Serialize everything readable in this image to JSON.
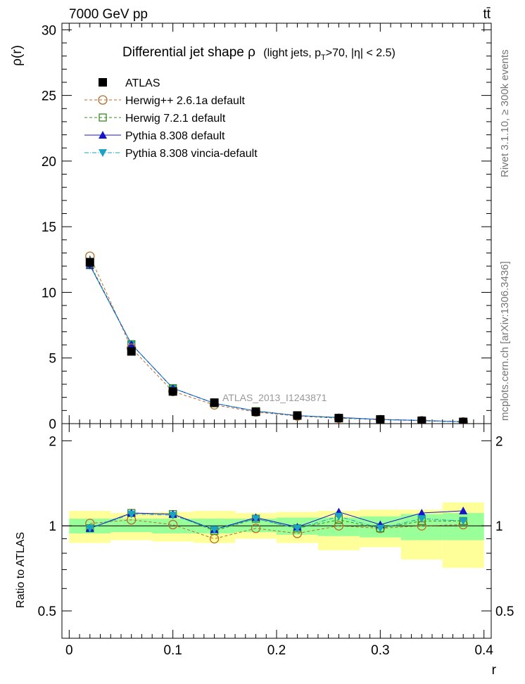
{
  "header": {
    "left": "7000 GeV pp",
    "right": "tt̄"
  },
  "side_labels": {
    "rivet": "Rivet 3.1.10, ≥ 300k events",
    "mcplots": "mcplots.cern.ch [arXiv:1306.3436]"
  },
  "chart_data": [
    {
      "type": "line",
      "title": "Differential jet shape  ρ",
      "subtitle": "(light jets, p_T>70, |η| < 2.5)",
      "subtitle_parts": {
        "a": "(light jets, p",
        "sub": "T",
        "b": ">70, |η| < 2.5)"
      },
      "watermark": "ATLAS_2013_I1243871",
      "xlabel": "r",
      "ylabel": "ρ(r)",
      "xlim": [
        -0.007,
        0.407
      ],
      "ylim": [
        0,
        30.5
      ],
      "xticks": [
        0,
        0.1,
        0.2,
        0.3,
        0.4
      ],
      "xtick_labels": [
        "0",
        "0.1",
        "0.2",
        "0.3",
        "0.4"
      ],
      "yticks": [
        0,
        5,
        10,
        15,
        20,
        25,
        30
      ],
      "ytick_labels": [
        "0",
        "5",
        "10",
        "15",
        "20",
        "25",
        "30"
      ],
      "x": [
        0.02,
        0.06,
        0.1,
        0.14,
        0.18,
        0.22,
        0.26,
        0.3,
        0.34,
        0.38
      ],
      "series": [
        {
          "name": "ATLAS",
          "color": "#000000",
          "marker": "filled-square",
          "values": [
            12.3,
            5.5,
            2.45,
            1.6,
            0.9,
            0.62,
            0.42,
            0.32,
            0.22,
            0.13
          ]
        },
        {
          "name": "Herwig++ 2.6.1a default",
          "color": "#b86a2a",
          "marker": "open-circle",
          "dash": "4,3",
          "values": [
            12.75,
            5.75,
            2.45,
            1.43,
            0.88,
            0.58,
            0.41,
            0.31,
            0.22,
            0.13
          ]
        },
        {
          "name": "Herwig 7.2.1 default",
          "color": "#3a8a1e",
          "marker": "open-square",
          "dash": "4,3",
          "values": [
            12.15,
            6.05,
            2.7,
            1.55,
            0.95,
            0.61,
            0.43,
            0.31,
            0.23,
            0.13
          ]
        },
        {
          "name": "Pythia 8.308 default",
          "color": "#1515cc",
          "marker": "filled-triangle-up",
          "values": [
            12.05,
            6.05,
            2.7,
            1.55,
            0.96,
            0.61,
            0.47,
            0.32,
            0.24,
            0.15
          ]
        },
        {
          "name": "Pythia 8.308 vincia-default",
          "color": "#1aa3c2",
          "marker": "filled-triangle-down",
          "dash": "6,2,1,2",
          "values": [
            12.05,
            6.05,
            2.7,
            1.55,
            0.96,
            0.61,
            0.45,
            0.31,
            0.23,
            0.14
          ]
        }
      ]
    },
    {
      "type": "line",
      "title": "Ratio to ATLAS",
      "ylabel": "Ratio to ATLAS",
      "xlabel": "r",
      "ylim": [
        0.4,
        2.3
      ],
      "yticks": [
        0.5,
        1,
        2
      ],
      "ytick_labels": [
        "0.5",
        "1",
        "2"
      ],
      "x": [
        0.02,
        0.06,
        0.1,
        0.14,
        0.18,
        0.22,
        0.26,
        0.3,
        0.34,
        0.38
      ],
      "bin_edges": [
        0,
        0.04,
        0.08,
        0.12,
        0.16,
        0.2,
        0.24,
        0.28,
        0.32,
        0.36,
        0.4
      ],
      "band_inner": {
        "lo": [
          0.94,
          0.95,
          0.94,
          0.94,
          0.95,
          0.93,
          0.92,
          0.91,
          0.89,
          0.89
        ],
        "hi": [
          1.06,
          1.06,
          1.06,
          1.06,
          1.06,
          1.07,
          1.07,
          1.08,
          1.1,
          1.11
        ]
      },
      "band_outer": {
        "lo": [
          0.87,
          0.89,
          0.88,
          0.87,
          0.9,
          0.87,
          0.82,
          0.84,
          0.76,
          0.71
        ],
        "hi": [
          1.13,
          1.11,
          1.12,
          1.13,
          1.11,
          1.12,
          1.13,
          1.14,
          1.14,
          1.21
        ]
      },
      "series": [
        {
          "name": "Herwig++ 2.6.1a default",
          "values": [
            1.02,
            1.05,
            1.01,
            0.9,
            0.98,
            0.94,
            1.0,
            0.98,
            1.0,
            1.01
          ]
        },
        {
          "name": "Herwig 7.2.1 default",
          "values": [
            0.98,
            1.11,
            1.1,
            0.96,
            1.06,
            0.98,
            1.05,
            0.98,
            1.04,
            1.04
          ]
        },
        {
          "name": "Pythia 8.308 default",
          "values": [
            0.98,
            1.11,
            1.1,
            0.97,
            1.07,
            0.99,
            1.12,
            1.01,
            1.11,
            1.13
          ]
        },
        {
          "name": "Pythia 8.308 vincia-default",
          "values": [
            0.98,
            1.1,
            1.09,
            0.97,
            1.06,
            0.98,
            1.08,
            0.98,
            1.06,
            1.04
          ]
        }
      ]
    }
  ]
}
